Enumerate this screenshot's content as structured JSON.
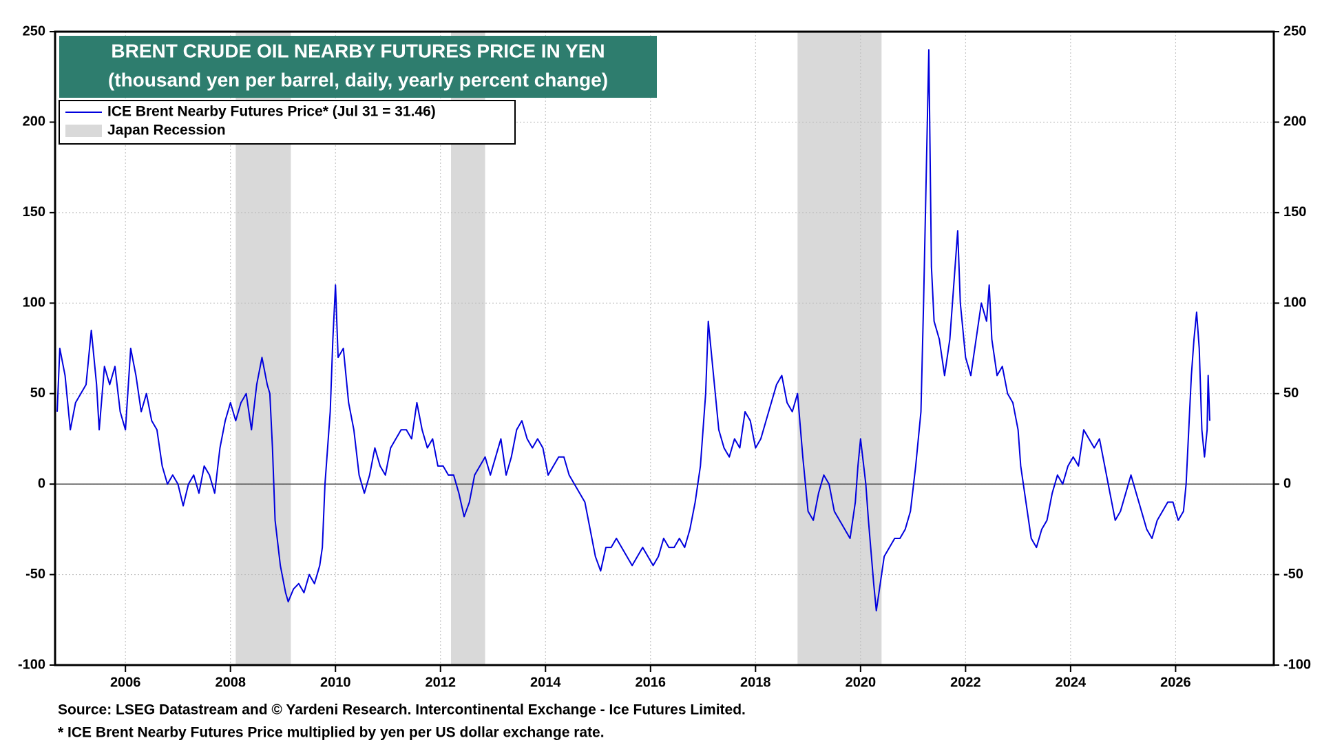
{
  "chart_data": {
    "type": "line",
    "title": "BRENT CRUDE OIL NEARBY FUTURES PRICE IN YEN",
    "subtitle": "(thousand yen per barrel, daily, yearly percent change)",
    "footnotes": [
      "Source: LSEG Datastream and © Yardeni Research. Intercontinental Exchange - Ice Futures Limited.",
      "* ICE Brent Nearby Futures Price multiplied by yen per US dollar exchange rate."
    ],
    "legend": "upper left",
    "grid": true,
    "hline": 0,
    "xlim": [
      2004.66,
      2027.87
    ],
    "xticks": [
      2006,
      2008,
      2010,
      2012,
      2014,
      2016,
      2018,
      2020,
      2022,
      2024,
      2026
    ],
    "ylim": [
      -100,
      250
    ],
    "yticks": [
      -100,
      -50,
      0,
      50,
      100,
      150,
      200,
      250
    ],
    "recessions": {
      "name": "Japan Recession",
      "color": "#d9d9d9",
      "spans": [
        [
          2008.1,
          2009.15
        ],
        [
          2012.2,
          2012.85
        ],
        [
          2018.8,
          2020.4
        ]
      ]
    },
    "x": [
      2004.7,
      2004.75,
      2004.85,
      2004.95,
      2005.05,
      2005.15,
      2005.25,
      2005.35,
      2005.45,
      2005.5,
      2005.6,
      2005.7,
      2005.8,
      2005.9,
      2006.0,
      2006.1,
      2006.2,
      2006.3,
      2006.4,
      2006.5,
      2006.6,
      2006.7,
      2006.8,
      2006.9,
      2007.0,
      2007.1,
      2007.2,
      2007.3,
      2007.4,
      2007.5,
      2007.6,
      2007.7,
      2007.8,
      2007.9,
      2008.0,
      2008.1,
      2008.2,
      2008.3,
      2008.4,
      2008.5,
      2008.6,
      2008.7,
      2008.75,
      2008.8,
      2008.85,
      2008.95,
      2009.05,
      2009.1,
      2009.2,
      2009.3,
      2009.4,
      2009.5,
      2009.6,
      2009.7,
      2009.75,
      2009.8,
      2009.9,
      2009.95,
      2010.0,
      2010.05,
      2010.15,
      2010.25,
      2010.35,
      2010.45,
      2010.55,
      2010.65,
      2010.75,
      2010.85,
      2010.95,
      2011.05,
      2011.15,
      2011.25,
      2011.35,
      2011.45,
      2011.55,
      2011.65,
      2011.75,
      2011.85,
      2011.95,
      2012.05,
      2012.15,
      2012.25,
      2012.35,
      2012.45,
      2012.55,
      2012.65,
      2012.75,
      2012.85,
      2012.95,
      2013.05,
      2013.15,
      2013.25,
      2013.35,
      2013.45,
      2013.55,
      2013.65,
      2013.75,
      2013.85,
      2013.95,
      2014.05,
      2014.15,
      2014.25,
      2014.35,
      2014.45,
      2014.55,
      2014.65,
      2014.75,
      2014.85,
      2014.95,
      2015.05,
      2015.15,
      2015.25,
      2015.35,
      2015.45,
      2015.55,
      2015.65,
      2015.75,
      2015.85,
      2015.95,
      2016.05,
      2016.15,
      2016.25,
      2016.35,
      2016.45,
      2016.55,
      2016.65,
      2016.75,
      2016.85,
      2016.95,
      2017.05,
      2017.1,
      2017.2,
      2017.3,
      2017.4,
      2017.5,
      2017.6,
      2017.7,
      2017.8,
      2017.9,
      2018.0,
      2018.1,
      2018.2,
      2018.3,
      2018.4,
      2018.5,
      2018.6,
      2018.7,
      2018.8,
      2018.9,
      2019.0,
      2019.1,
      2019.2,
      2019.3,
      2019.4,
      2019.5,
      2019.6,
      2019.7,
      2019.8,
      2019.9,
      2019.95,
      2020.0,
      2020.1,
      2020.15,
      2020.25,
      2020.3,
      2020.35,
      2020.45,
      2020.55,
      2020.65,
      2020.75,
      2020.85,
      2020.95,
      2021.05,
      2021.15,
      2021.2,
      2021.25,
      2021.3,
      2021.35,
      2021.4,
      2021.5,
      2021.6,
      2021.7,
      2021.8,
      2021.85,
      2021.9,
      2022.0,
      2022.1,
      2022.2,
      2022.3,
      2022.4,
      2022.45,
      2022.5,
      2022.6,
      2022.7,
      2022.8,
      2022.9,
      2023.0,
      2023.05,
      2023.15,
      2023.25,
      2023.35,
      2023.45,
      2023.55,
      2023.65,
      2023.75,
      2023.85,
      2023.95,
      2024.05,
      2024.15,
      2024.25,
      2024.35,
      2024.45,
      2024.55,
      2024.65,
      2024.75,
      2024.85,
      2024.95,
      2025.05,
      2025.15,
      2025.25,
      2025.35,
      2025.45,
      2025.55,
      2025.65,
      2025.75,
      2025.85,
      2025.95,
      2026.05,
      2026.15,
      2026.2,
      2026.25,
      2026.3,
      2026.35,
      2026.4,
      2026.45,
      2026.5,
      2026.55,
      2026.6,
      2026.62,
      2026.65
    ],
    "series": [
      {
        "name": "ICE Brent Nearby Futures Price* (Jul 31 = 31.46)",
        "color": "#0000dd",
        "values": [
          40,
          75,
          60,
          30,
          45,
          50,
          55,
          85,
          55,
          30,
          65,
          55,
          65,
          40,
          30,
          75,
          60,
          40,
          50,
          35,
          30,
          10,
          0,
          5,
          0,
          -12,
          0,
          5,
          -5,
          10,
          5,
          -5,
          20,
          35,
          45,
          35,
          45,
          50,
          30,
          55,
          70,
          55,
          50,
          20,
          -20,
          -45,
          -60,
          -65,
          -58,
          -55,
          -60,
          -50,
          -55,
          -45,
          -35,
          0,
          40,
          80,
          110,
          70,
          75,
          45,
          30,
          5,
          -5,
          5,
          20,
          10,
          5,
          20,
          25,
          30,
          30,
          25,
          45,
          30,
          20,
          25,
          10,
          10,
          5,
          5,
          -5,
          -18,
          -10,
          5,
          10,
          15,
          5,
          15,
          25,
          5,
          15,
          30,
          35,
          25,
          20,
          25,
          20,
          5,
          10,
          15,
          15,
          5,
          0,
          -5,
          -10,
          -25,
          -40,
          -48,
          -35,
          -35,
          -30,
          -35,
          -40,
          -45,
          -40,
          -35,
          -40,
          -45,
          -40,
          -30,
          -35,
          -35,
          -30,
          -35,
          -25,
          -10,
          10,
          50,
          90,
          60,
          30,
          20,
          15,
          25,
          20,
          40,
          35,
          20,
          25,
          35,
          45,
          55,
          60,
          45,
          40,
          50,
          15,
          -15,
          -20,
          -5,
          5,
          0,
          -15,
          -20,
          -25,
          -30,
          -10,
          10,
          25,
          0,
          -20,
          -55,
          -70,
          -60,
          -40,
          -35,
          -30,
          -30,
          -25,
          -15,
          10,
          40,
          100,
          170,
          240,
          120,
          90,
          80,
          60,
          80,
          120,
          140,
          100,
          70,
          60,
          80,
          100,
          90,
          110,
          80,
          60,
          65,
          50,
          45,
          30,
          10,
          -10,
          -30,
          -35,
          -25,
          -20,
          -5,
          5,
          0,
          10,
          15,
          10,
          30,
          25,
          20,
          25,
          10,
          -5,
          -20,
          -15,
          -5,
          5,
          -5,
          -15,
          -25,
          -30,
          -20,
          -15,
          -10,
          -10,
          -20,
          -15,
          0,
          30,
          60,
          80,
          95,
          75,
          30,
          15,
          30,
          60,
          35
        ]
      }
    ]
  }
}
